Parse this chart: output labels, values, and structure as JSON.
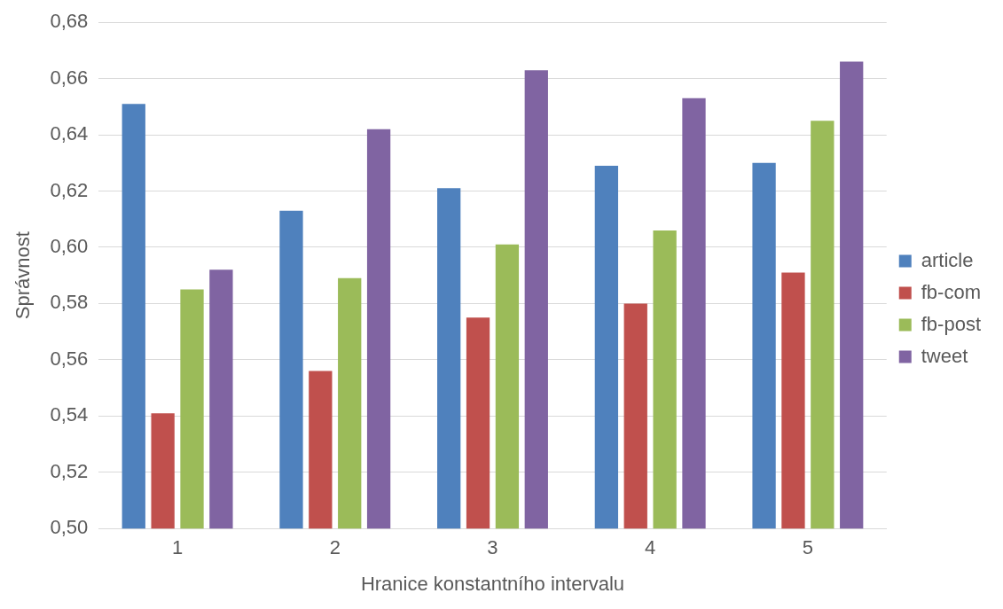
{
  "chart_data": {
    "type": "bar",
    "xlabel": "Hranice konstantního intervalu",
    "ylabel": "Správnost",
    "categories": [
      "1",
      "2",
      "3",
      "4",
      "5"
    ],
    "series": [
      {
        "name": "article",
        "color": "#4f81bd",
        "values": [
          0.651,
          0.613,
          0.621,
          0.629,
          0.63
        ]
      },
      {
        "name": "fb-com",
        "color": "#c0504d",
        "values": [
          0.541,
          0.556,
          0.575,
          0.58,
          0.591
        ]
      },
      {
        "name": "fb-post",
        "color": "#9bbb59",
        "values": [
          0.585,
          0.589,
          0.601,
          0.606,
          0.645
        ]
      },
      {
        "name": "tweet",
        "color": "#8064a2",
        "values": [
          0.592,
          0.642,
          0.663,
          0.653,
          0.666
        ]
      }
    ],
    "ylim": [
      0.5,
      0.68
    ],
    "yticks": [
      {
        "value": 0.5,
        "label": "0,50"
      },
      {
        "value": 0.52,
        "label": "0,52"
      },
      {
        "value": 0.54,
        "label": "0,54"
      },
      {
        "value": 0.56,
        "label": "0,56"
      },
      {
        "value": 0.58,
        "label": "0,58"
      },
      {
        "value": 0.6,
        "label": "0,60"
      },
      {
        "value": 0.62,
        "label": "0,62"
      },
      {
        "value": 0.64,
        "label": "0,64"
      },
      {
        "value": 0.66,
        "label": "0,66"
      },
      {
        "value": 0.68,
        "label": "0,68"
      }
    ],
    "grid": "y",
    "legend": "right"
  }
}
